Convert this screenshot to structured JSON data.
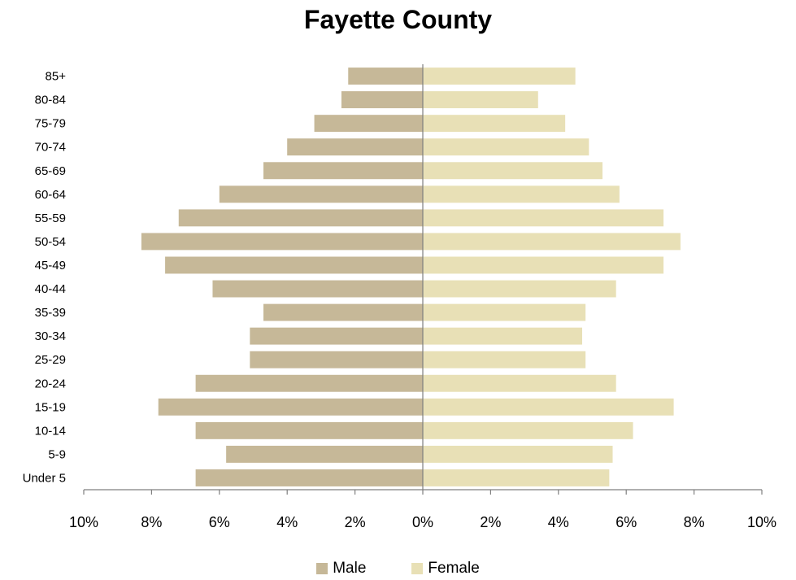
{
  "chart_data": {
    "type": "bar",
    "orientation": "horizontal",
    "title": "Fayette County",
    "categories": [
      "Under 5",
      "5-9",
      "10-14",
      "15-19",
      "20-24",
      "25-29",
      "30-34",
      "35-39",
      "40-44",
      "45-49",
      "50-54",
      "55-59",
      "60-64",
      "65-69",
      "70-74",
      "75-79",
      "80-84",
      "85+"
    ],
    "series": [
      {
        "name": "Male",
        "color": "#c6b898",
        "values": [
          6.7,
          5.8,
          6.7,
          7.8,
          6.7,
          5.1,
          5.1,
          4.7,
          6.2,
          7.6,
          8.3,
          7.2,
          6.0,
          4.7,
          4.0,
          3.2,
          2.4,
          2.2
        ]
      },
      {
        "name": "Female",
        "color": "#e8e0b6",
        "values": [
          5.5,
          5.6,
          6.2,
          7.4,
          5.7,
          4.8,
          4.7,
          4.8,
          5.7,
          7.1,
          7.6,
          7.1,
          5.8,
          5.3,
          4.9,
          4.2,
          3.4,
          4.5
        ]
      }
    ],
    "x_ticks": [
      "10%",
      "8%",
      "6%",
      "4%",
      "2%",
      "0%",
      "2%",
      "4%",
      "6%",
      "8%",
      "10%"
    ],
    "xlim": [
      -10,
      10
    ],
    "xlabel": "",
    "ylabel": "",
    "grid": false,
    "legend_position": "bottom"
  }
}
